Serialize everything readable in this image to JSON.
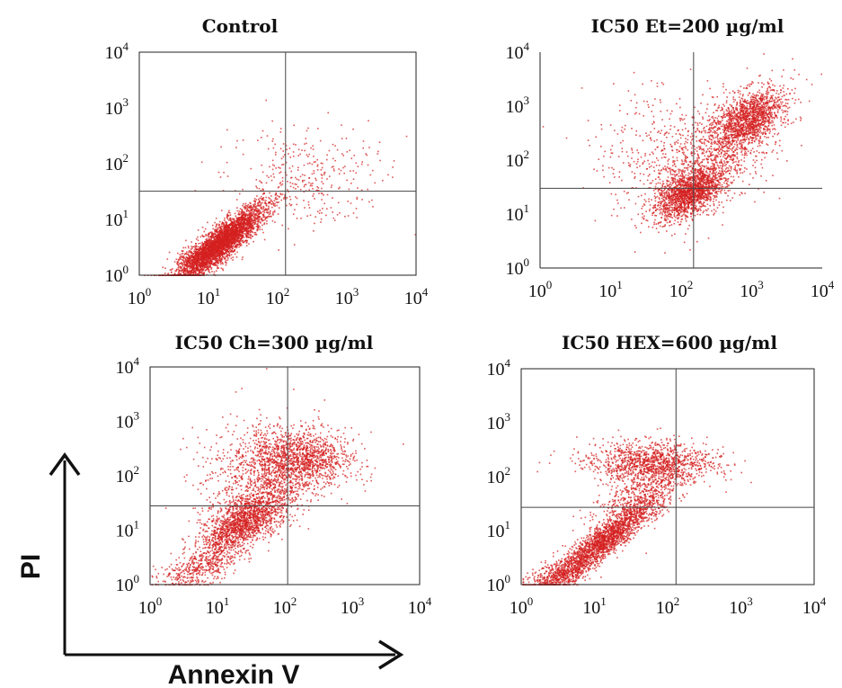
{
  "figure": {
    "x_axis_label": "Annexin V",
    "y_axis_label": "PI"
  },
  "chart_data": [
    {
      "type": "scatter",
      "title": "Control",
      "x_scale": "log10",
      "y_scale": "log10",
      "xlim": [
        1,
        10000
      ],
      "ylim": [
        1,
        10000
      ],
      "x_ticks": [
        "10^0",
        "10^1",
        "10^2",
        "10^3",
        "10^4"
      ],
      "y_ticks": [
        "10^0",
        "10^1",
        "10^2",
        "10^3",
        "10^4"
      ],
      "quadrant_gate": {
        "x": 130,
        "y": 32
      },
      "point_color": "#d42020",
      "populations": [
        {
          "x_center": 15,
          "y_center": 4,
          "log_spread_x": 0.32,
          "log_spread_y": 0.34,
          "correlation": 0.88,
          "weight": 0.86
        },
        {
          "x_center": 7,
          "y_center": 1.8,
          "log_spread_x": 0.18,
          "log_spread_y": 0.16,
          "correlation": 0.5,
          "weight": 0.06
        },
        {
          "x_center": 250,
          "y_center": 60,
          "log_spread_x": 0.55,
          "log_spread_y": 0.45,
          "correlation": 0.0,
          "weight": 0.08
        }
      ]
    },
    {
      "type": "scatter",
      "title": "IC50 Et=200 µg/ml",
      "x_scale": "log10",
      "y_scale": "log10",
      "xlim": [
        1,
        10000
      ],
      "ylim": [
        1,
        10000
      ],
      "x_ticks": [
        "10^0",
        "10^1",
        "10^2",
        "10^3",
        "10^4"
      ],
      "y_ticks": [
        "10^0",
        "10^1",
        "10^2",
        "10^3",
        "10^4"
      ],
      "quadrant_gate": {
        "x": 150,
        "y": 30
      },
      "point_color": "#d42020",
      "populations": [
        {
          "x_center": 130,
          "y_center": 25,
          "log_spread_x": 0.25,
          "log_spread_y": 0.25,
          "correlation": 0.6,
          "weight": 0.38
        },
        {
          "x_center": 900,
          "y_center": 600,
          "log_spread_x": 0.25,
          "log_spread_y": 0.28,
          "correlation": 0.5,
          "weight": 0.32
        },
        {
          "x_center": 350,
          "y_center": 150,
          "log_spread_x": 0.45,
          "log_spread_y": 0.55,
          "correlation": 0.55,
          "weight": 0.2
        },
        {
          "x_center": 60,
          "y_center": 120,
          "log_spread_x": 0.5,
          "log_spread_y": 0.6,
          "correlation": 0.0,
          "weight": 0.1
        }
      ]
    },
    {
      "type": "scatter",
      "title": "IC50 Ch=300 µg/ml",
      "x_scale": "log10",
      "y_scale": "log10",
      "xlim": [
        1,
        10000
      ],
      "ylim": [
        1,
        10000
      ],
      "x_ticks": [
        "10^0",
        "10^1",
        "10^2",
        "10^3",
        "10^4"
      ],
      "y_ticks": [
        "10^0",
        "10^1",
        "10^2",
        "10^3",
        "10^4"
      ],
      "quadrant_gate": {
        "x": 110,
        "y": 28
      },
      "point_color": "#d42020",
      "populations": [
        {
          "x_center": 25,
          "y_center": 15,
          "log_spread_x": 0.32,
          "log_spread_y": 0.32,
          "correlation": 0.65,
          "weight": 0.42
        },
        {
          "x_center": 150,
          "y_center": 200,
          "log_spread_x": 0.4,
          "log_spread_y": 0.28,
          "correlation": 0.0,
          "weight": 0.33
        },
        {
          "x_center": 40,
          "y_center": 110,
          "log_spread_x": 0.5,
          "log_spread_y": 0.5,
          "correlation": 0.2,
          "weight": 0.15
        },
        {
          "x_center": 5,
          "y_center": 2,
          "log_spread_x": 0.28,
          "log_spread_y": 0.22,
          "correlation": 0.5,
          "weight": 0.1
        }
      ]
    },
    {
      "type": "scatter",
      "title": "IC50 HEX=600 µg/ml",
      "x_scale": "log10",
      "y_scale": "log10",
      "xlim": [
        1,
        10000
      ],
      "ylim": [
        1,
        10000
      ],
      "x_ticks": [
        "10^0",
        "10^1",
        "10^2",
        "10^3",
        "10^4"
      ],
      "y_ticks": [
        "10^0",
        "10^1",
        "10^2",
        "10^3",
        "10^4"
      ],
      "quadrant_gate": {
        "x": 130,
        "y": 27
      },
      "point_color": "#d42020",
      "populations": [
        {
          "x_center": 12,
          "y_center": 6,
          "log_spread_x": 0.38,
          "log_spread_y": 0.42,
          "correlation": 0.92,
          "weight": 0.5
        },
        {
          "x_center": 60,
          "y_center": 180,
          "log_spread_x": 0.42,
          "log_spread_y": 0.2,
          "correlation": 0.0,
          "weight": 0.3
        },
        {
          "x_center": 40,
          "y_center": 40,
          "log_spread_x": 0.3,
          "log_spread_y": 0.3,
          "correlation": 0.6,
          "weight": 0.12
        },
        {
          "x_center": 3,
          "y_center": 1.5,
          "log_spread_x": 0.2,
          "log_spread_y": 0.15,
          "correlation": 0.4,
          "weight": 0.08
        }
      ]
    }
  ]
}
